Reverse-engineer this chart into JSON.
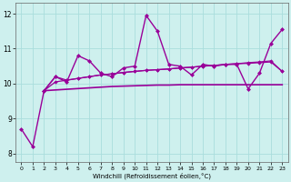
{
  "background_color": "#cef0ee",
  "grid_color": "#aadddd",
  "line_color": "#990099",
  "xlim": [
    -0.5,
    23.5
  ],
  "ylim": [
    7.75,
    12.3
  ],
  "xticks": [
    0,
    1,
    2,
    3,
    4,
    5,
    6,
    7,
    8,
    9,
    10,
    11,
    12,
    13,
    14,
    15,
    16,
    17,
    18,
    19,
    20,
    21,
    22,
    23
  ],
  "yticks": [
    8,
    9,
    10,
    11,
    12
  ],
  "xlabel": "Windchill (Refroidissement éolien,°C)",
  "series": {
    "jagged": [
      8.7,
      8.2,
      9.8,
      10.2,
      10.05,
      10.8,
      10.65,
      10.3,
      10.2,
      10.45,
      10.5,
      11.95,
      11.5,
      10.55,
      10.5,
      10.25,
      10.55,
      10.5,
      10.55,
      10.55,
      9.85,
      10.3,
      11.15,
      11.55
    ],
    "trend_marked": [
      null,
      null,
      9.8,
      10.2,
      10.1,
      10.15,
      10.2,
      10.25,
      10.28,
      10.32,
      10.35,
      10.38,
      10.4,
      10.42,
      10.45,
      10.47,
      10.5,
      10.52,
      10.55,
      10.57,
      10.58,
      10.6,
      10.62,
      10.35
    ],
    "flat_line": [
      null,
      null,
      9.8,
      9.82,
      9.84,
      9.86,
      9.88,
      9.9,
      9.92,
      9.93,
      9.94,
      9.95,
      9.96,
      9.96,
      9.97,
      9.97,
      9.97,
      9.97,
      9.97,
      9.97,
      9.97,
      9.97,
      9.97,
      9.97
    ],
    "mid_trend": [
      null,
      null,
      9.8,
      10.05,
      10.1,
      10.15,
      10.2,
      10.25,
      10.28,
      10.32,
      10.35,
      10.38,
      10.4,
      10.42,
      10.45,
      10.47,
      10.5,
      10.52,
      10.55,
      10.57,
      10.6,
      10.62,
      10.65,
      10.35
    ]
  }
}
